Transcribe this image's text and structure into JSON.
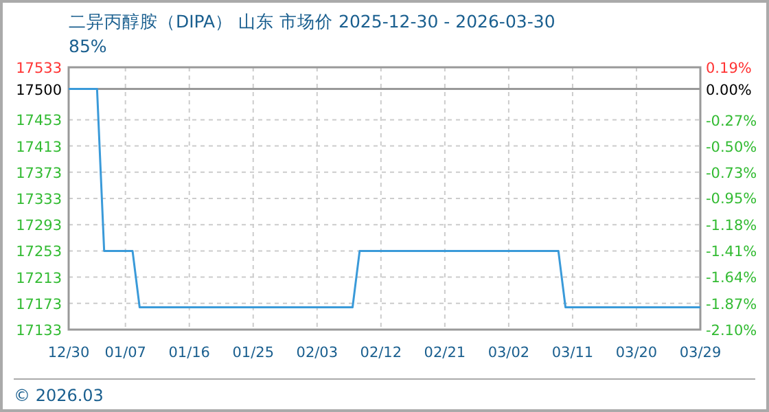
{
  "chart_data": {
    "type": "step",
    "title": "二异丙醇胺（DIPA） 山东 市场价 2025-12-30 - 2026-03-30",
    "subtitle": "85%",
    "x": [
      "2025-12-30",
      "2026-01-03",
      "2026-01-04",
      "2026-01-08",
      "2026-01-09",
      "2026-02-08",
      "2026-02-09",
      "2026-03-09",
      "2026-03-10",
      "2026-03-29"
    ],
    "series": [
      {
        "color": "#3a9ad9",
        "values": [
          17500,
          17500,
          17253,
          17253,
          17167,
          17167,
          17253,
          17253,
          17167,
          17167
        ]
      }
    ],
    "xlim": [
      "2025-12-30",
      "2026-03-29"
    ],
    "xticks": [
      {
        "value": "2025-12-30",
        "label": "12/30"
      },
      {
        "value": "2026-01-07",
        "label": "01/07"
      },
      {
        "value": "2026-01-16",
        "label": "01/16"
      },
      {
        "value": "2026-01-25",
        "label": "01/25"
      },
      {
        "value": "2026-02-03",
        "label": "02/03"
      },
      {
        "value": "2026-02-12",
        "label": "02/12"
      },
      {
        "value": "2026-02-21",
        "label": "02/21"
      },
      {
        "value": "2026-03-02",
        "label": "03/02"
      },
      {
        "value": "2026-03-11",
        "label": "03/11"
      },
      {
        "value": "2026-03-20",
        "label": "03/20"
      },
      {
        "value": "2026-03-29",
        "label": "03/29"
      }
    ],
    "ylim": [
      17133,
      17533
    ],
    "yticks": [
      17133,
      17173,
      17213,
      17253,
      17293,
      17333,
      17373,
      17413,
      17453,
      17500,
      17533
    ],
    "y2lim": [
      -2.1,
      0.19
    ],
    "y2ticks": [
      {
        "value": -2.1,
        "label": "-2.10%"
      },
      {
        "value": -1.87,
        "label": "-1.87%"
      },
      {
        "value": -1.64,
        "label": "-1.64%"
      },
      {
        "value": -1.41,
        "label": "-1.41%"
      },
      {
        "value": -1.18,
        "label": "-1.18%"
      },
      {
        "value": -0.95,
        "label": "-0.95%"
      },
      {
        "value": -0.73,
        "label": "-0.73%"
      },
      {
        "value": -0.5,
        "label": "-0.50%"
      },
      {
        "value": -0.27,
        "label": "-0.27%"
      },
      {
        "value": 0,
        "label": "0.00%"
      },
      {
        "value": 0.19,
        "label": "0.19%"
      }
    ],
    "ref_lines": [
      {
        "axis": "y",
        "value": 17500,
        "color": "#999999"
      }
    ],
    "grid": true,
    "line_style": "solid",
    "annotations": [
      "© 2026.03"
    ]
  }
}
